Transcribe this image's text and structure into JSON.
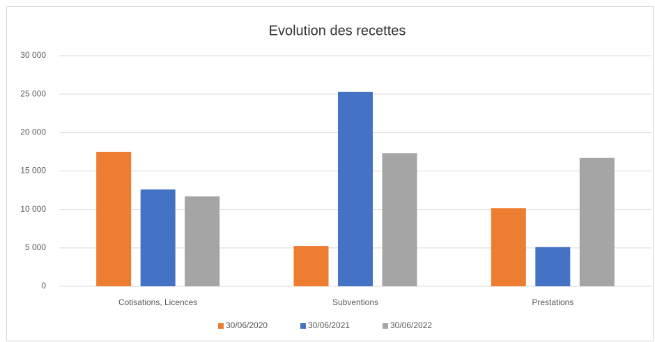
{
  "chart_data": {
    "type": "bar",
    "title": "Evolution des recettes",
    "categories": [
      "Cotisations, Licences",
      "Subventions",
      "Prestations"
    ],
    "series": [
      {
        "name": "30/06/2020",
        "color": "#ed7d31",
        "values": [
          17500,
          5250,
          10150
        ]
      },
      {
        "name": "30/06/2021",
        "color": "#4472c4",
        "values": [
          12600,
          25300,
          5100
        ]
      },
      {
        "name": "30/06/2022",
        "color": "#a5a5a5",
        "values": [
          11700,
          17300,
          16700
        ]
      }
    ],
    "ylim": [
      0,
      30000
    ],
    "yticks": [
      0,
      {
        "value": 5000,
        "label": "5 000"
      },
      {
        "value": 10000,
        "label": "10 000"
      },
      {
        "value": 15000,
        "label": "15 000"
      },
      {
        "value": 20000,
        "label": "20 000"
      },
      {
        "value": 25000,
        "label": "25 000"
      },
      {
        "value": 30000,
        "label": "30 000"
      }
    ],
    "grid": true,
    "legend": "bottom"
  }
}
